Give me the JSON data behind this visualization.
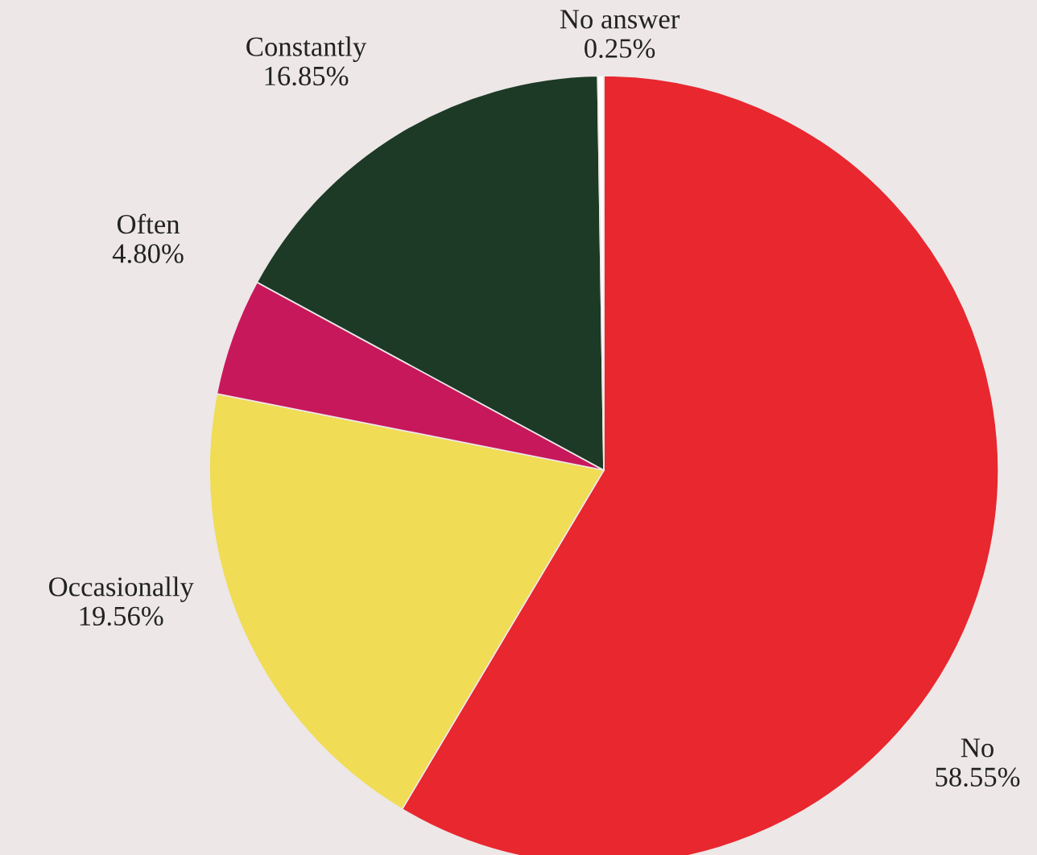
{
  "chart_data": {
    "type": "pie",
    "categories": [
      "No",
      "Occasionally",
      "Often",
      "Constantly",
      "No answer"
    ],
    "values": [
      58.55,
      19.56,
      4.8,
      16.85,
      0.25
    ],
    "value_labels": [
      "58.55%",
      "19.56%",
      "4.80%",
      "16.85%",
      "0.25%"
    ],
    "colors": [
      "#e8272f",
      "#f0dc55",
      "#c8185c",
      "#1c3a26",
      "#ffffff"
    ],
    "legend": false
  }
}
